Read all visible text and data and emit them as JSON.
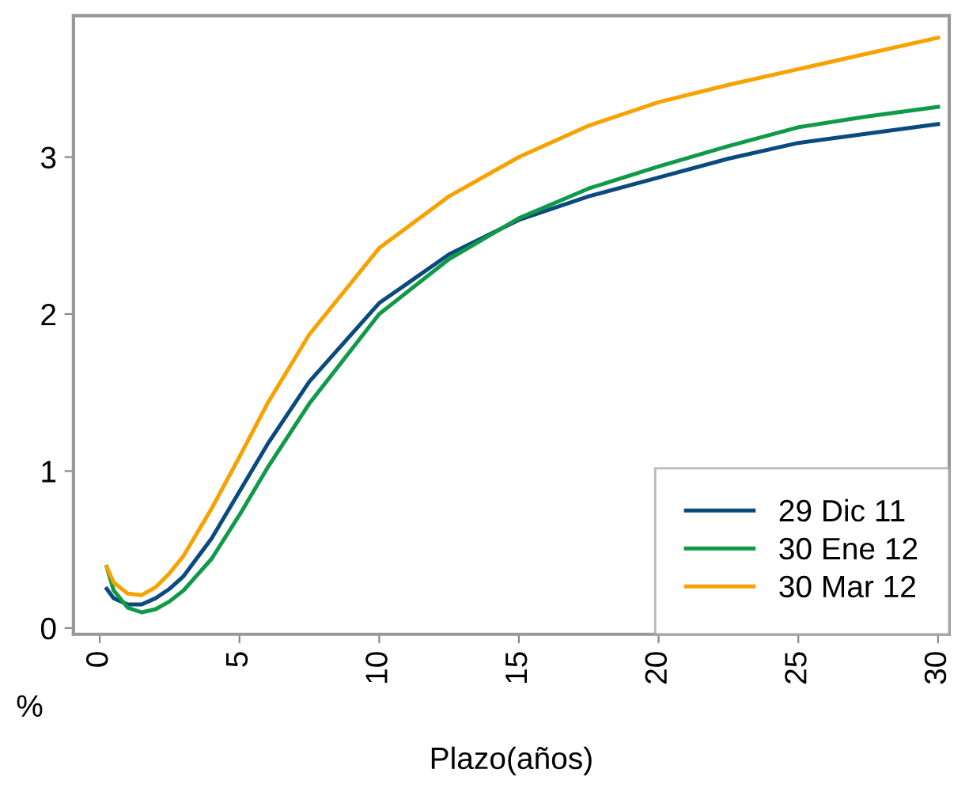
{
  "chart_data": {
    "type": "line",
    "xlabel": "Plazo(años)",
    "ylabel": "%",
    "xlim": [
      -0.94,
      30.4
    ],
    "ylim": [
      -0.04,
      3.9
    ],
    "xticks": [
      0,
      5,
      10,
      15,
      20,
      25,
      30
    ],
    "yticks": [
      0,
      1,
      2,
      3
    ],
    "x": [
      0.25,
      0.5,
      1,
      1.5,
      2,
      2.5,
      3,
      4,
      5,
      6,
      7.5,
      10,
      12.5,
      15,
      17.5,
      20,
      22.5,
      25,
      27.5,
      30
    ],
    "series": [
      {
        "name": "29 Dic 11",
        "color": "#0a4a7f",
        "values": [
          0.25,
          0.19,
          0.15,
          0.15,
          0.19,
          0.25,
          0.33,
          0.57,
          0.87,
          1.17,
          1.57,
          2.07,
          2.38,
          2.6,
          2.75,
          2.87,
          2.99,
          3.09,
          3.15,
          3.21
        ]
      },
      {
        "name": "30 Ene 12",
        "color": "#0f9a48",
        "values": [
          0.39,
          0.24,
          0.13,
          0.1,
          0.12,
          0.17,
          0.24,
          0.44,
          0.72,
          1.02,
          1.43,
          2.0,
          2.35,
          2.61,
          2.8,
          2.94,
          3.07,
          3.19,
          3.26,
          3.32
        ]
      },
      {
        "name": "30 Mar 12",
        "color": "#f8a200",
        "values": [
          0.39,
          0.29,
          0.22,
          0.21,
          0.26,
          0.35,
          0.46,
          0.76,
          1.09,
          1.43,
          1.87,
          2.42,
          2.75,
          3.0,
          3.2,
          3.35,
          3.46,
          3.56,
          3.66,
          3.76
        ]
      }
    ],
    "legend": "bottom right",
    "grid": false,
    "marker": "none",
    "line_style": "solid"
  }
}
